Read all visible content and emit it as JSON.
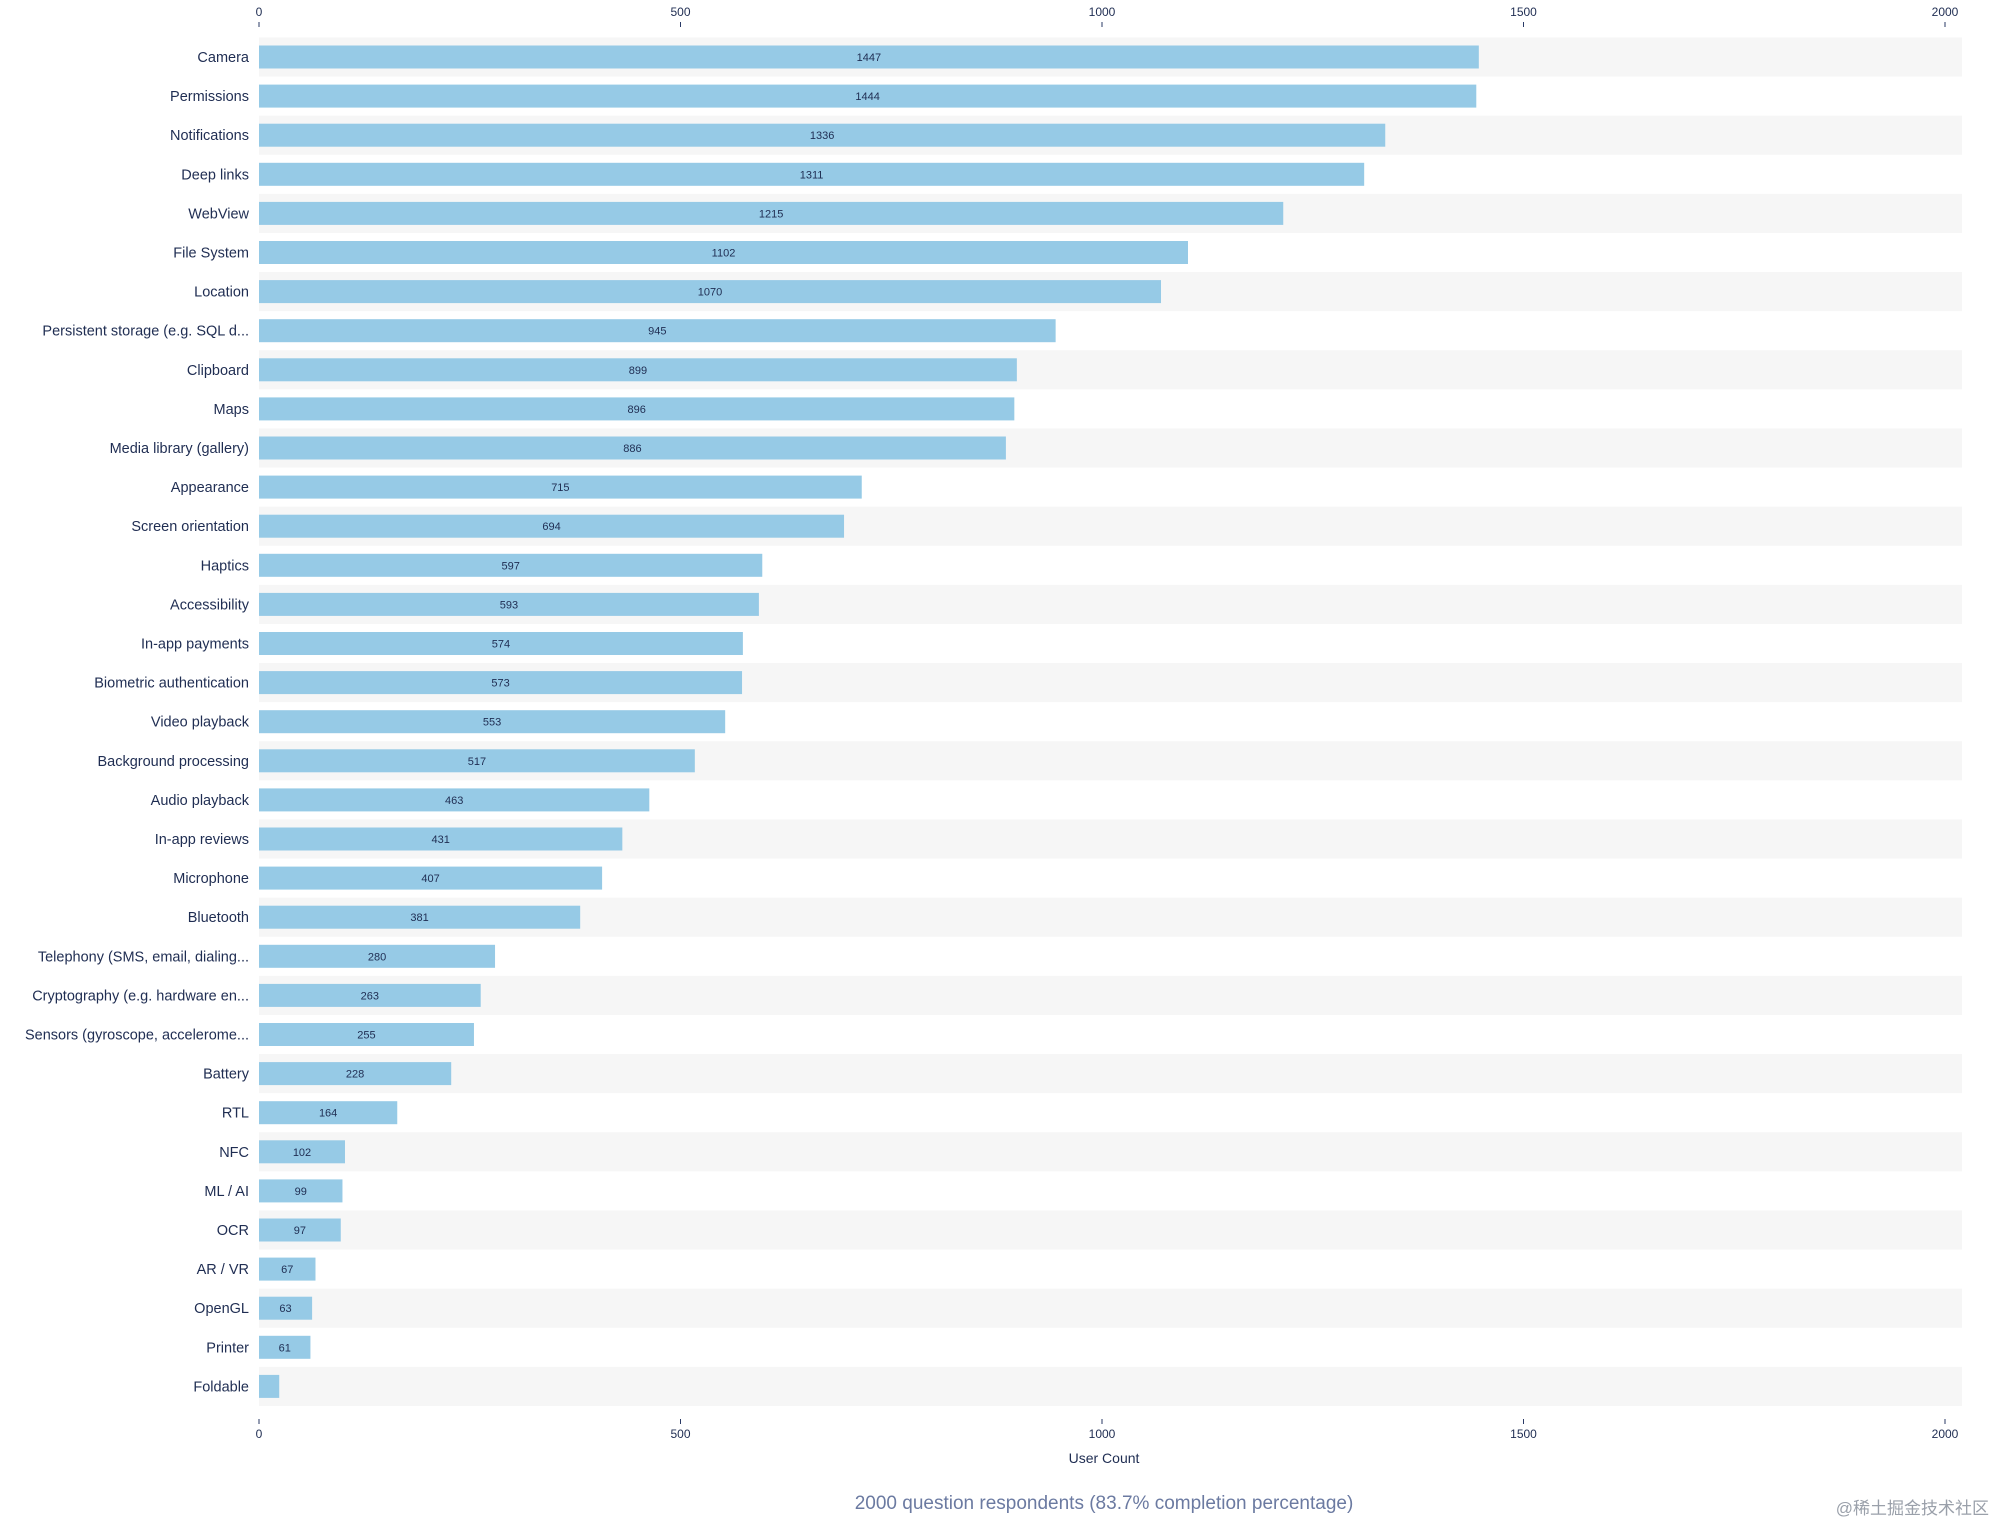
{
  "chart_data": {
    "type": "bar",
    "orientation": "horizontal",
    "xlabel": "User Count",
    "ylabel": "",
    "xlim": [
      0,
      2000
    ],
    "ticks": [
      0,
      500,
      1000,
      1500,
      2000
    ],
    "categories": [
      "Camera",
      "Permissions",
      "Notifications",
      "Deep links",
      "WebView",
      "File System",
      "Location",
      "Persistent storage (e.g. SQL d...",
      "Clipboard",
      "Maps",
      "Media library (gallery)",
      "Appearance",
      "Screen orientation",
      "Haptics",
      "Accessibility",
      "In-app payments",
      "Biometric authentication",
      "Video playback",
      "Background processing",
      "Audio playback",
      "In-app reviews",
      "Microphone",
      "Bluetooth",
      "Telephony (SMS, email, dialing...",
      "Cryptography (e.g. hardware en...",
      "Sensors (gyroscope, accelerome...",
      "Battery",
      "RTL",
      "NFC",
      "ML / AI",
      "OCR",
      "AR / VR",
      "OpenGL",
      "Printer",
      "Foldable"
    ],
    "values": [
      1447,
      1444,
      1336,
      1311,
      1215,
      1102,
      1070,
      945,
      899,
      896,
      886,
      715,
      694,
      597,
      593,
      574,
      573,
      553,
      517,
      463,
      431,
      407,
      381,
      280,
      263,
      255,
      228,
      164,
      102,
      99,
      97,
      67,
      63,
      61,
      24
    ],
    "data_labels": [
      "1447",
      "1444",
      "1336",
      "1311",
      "1215",
      "1102",
      "1070",
      "945",
      "899",
      "896",
      "886",
      "715",
      "694",
      "597",
      "593",
      "574",
      "573",
      "553",
      "517",
      "463",
      "431",
      "407",
      "381",
      "280",
      "263",
      "255",
      "228",
      "164",
      "102",
      "99",
      "97",
      "67",
      "63",
      "61",
      ""
    ],
    "grid": false,
    "bar_color": "#96cae6",
    "band_color": "#f6f6f6"
  },
  "footnote": "2000 question respondents (83.7% completion percentage)",
  "watermark": "@稀土掘金技术社区"
}
